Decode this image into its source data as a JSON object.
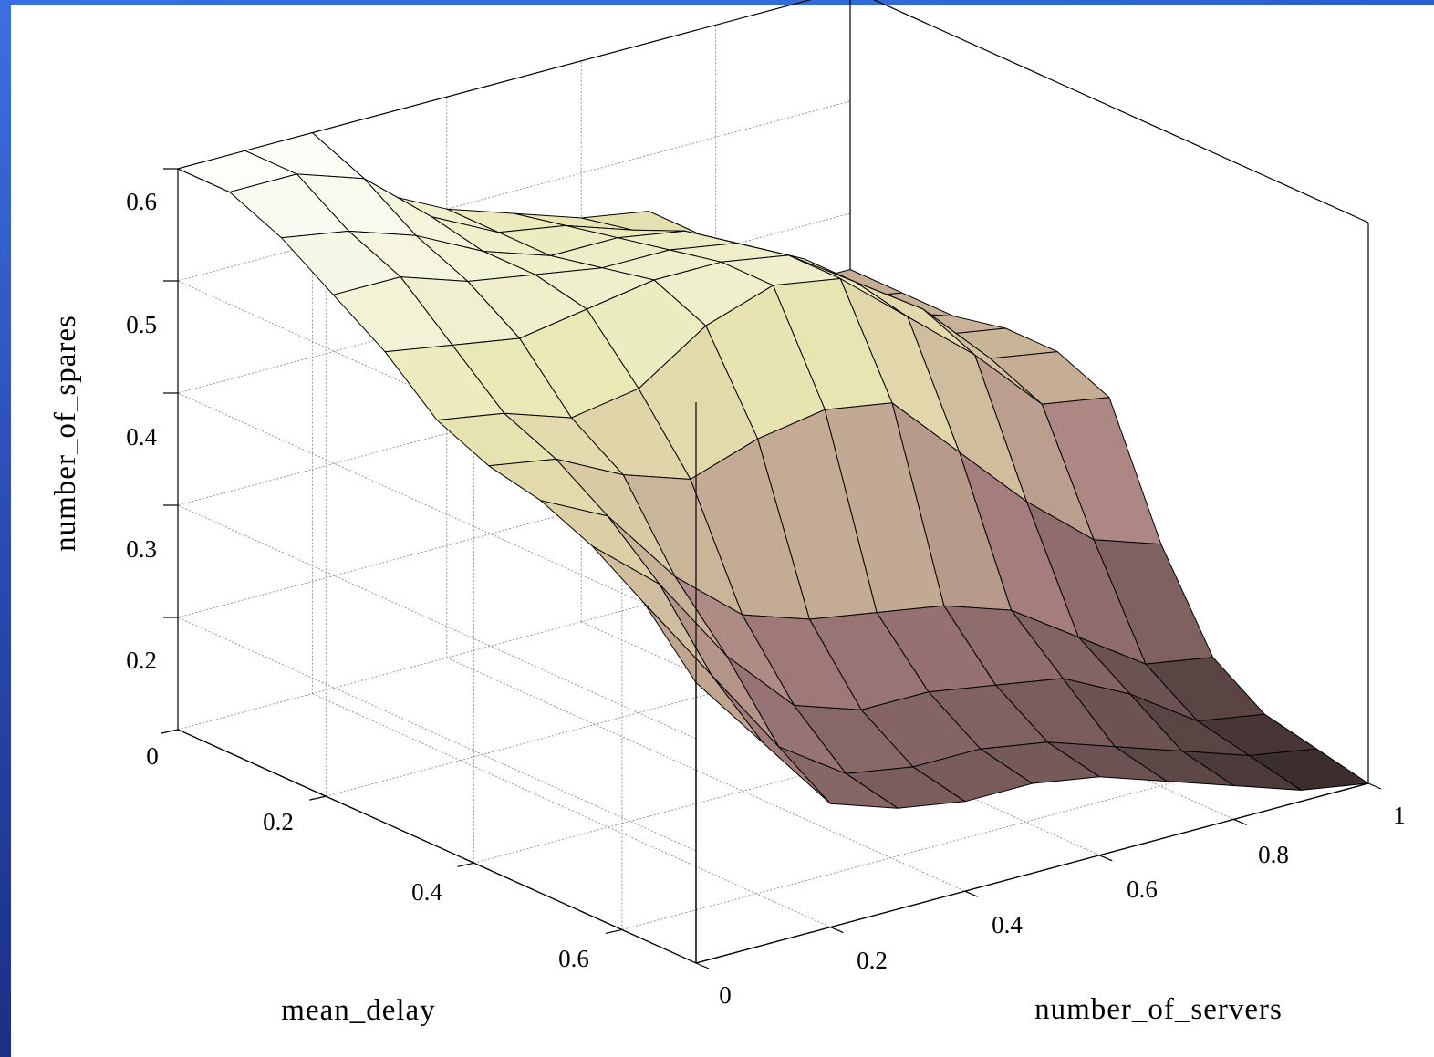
{
  "chart_data": {
    "type": "surface",
    "xlabel": "number_of_servers",
    "ylabel": "mean_delay",
    "zlabel": "number_of_spares",
    "xlim": [
      0,
      1
    ],
    "ylim": [
      0,
      0.7
    ],
    "zlim": [
      0.1,
      0.6
    ],
    "x_ticks": [
      "0",
      "0.2",
      "0.4",
      "0.6",
      "0.8",
      "1"
    ],
    "y_ticks": [
      "0",
      "0.2",
      "0.4",
      "0.6"
    ],
    "z_ticks": [
      "0.2",
      "0.3",
      "0.4",
      "0.5",
      "0.6"
    ],
    "grid": true,
    "colormap": "pink",
    "x": [
      0,
      0.1,
      0.2,
      0.3,
      0.4,
      0.5,
      0.6,
      0.7,
      0.8,
      0.9,
      1.0
    ],
    "y": [
      0,
      0.07,
      0.14,
      0.21,
      0.28,
      0.35,
      0.42,
      0.49,
      0.56,
      0.63,
      0.7
    ],
    "z": [
      [
        0.6,
        0.6,
        0.6,
        0.53,
        0.5,
        0.48,
        0.46,
        0.45,
        0.4,
        0.35,
        0.35
      ],
      [
        0.6,
        0.6,
        0.58,
        0.53,
        0.5,
        0.49,
        0.47,
        0.45,
        0.41,
        0.36,
        0.35
      ],
      [
        0.58,
        0.57,
        0.55,
        0.52,
        0.5,
        0.5,
        0.49,
        0.46,
        0.41,
        0.37,
        0.35
      ],
      [
        0.55,
        0.55,
        0.53,
        0.52,
        0.51,
        0.51,
        0.5,
        0.47,
        0.42,
        0.37,
        0.36
      ],
      [
        0.52,
        0.51,
        0.5,
        0.51,
        0.52,
        0.52,
        0.51,
        0.47,
        0.43,
        0.37,
        0.36
      ],
      [
        0.48,
        0.47,
        0.45,
        0.46,
        0.5,
        0.52,
        0.51,
        0.46,
        0.41,
        0.35,
        0.34
      ],
      [
        0.46,
        0.45,
        0.42,
        0.4,
        0.42,
        0.43,
        0.42,
        0.36,
        0.3,
        0.25,
        0.23
      ],
      [
        0.45,
        0.42,
        0.35,
        0.3,
        0.28,
        0.27,
        0.26,
        0.24,
        0.2,
        0.16,
        0.15
      ],
      [
        0.43,
        0.38,
        0.3,
        0.24,
        0.22,
        0.22,
        0.21,
        0.2,
        0.17,
        0.13,
        0.12
      ],
      [
        0.4,
        0.32,
        0.24,
        0.2,
        0.19,
        0.19,
        0.18,
        0.16,
        0.14,
        0.12,
        0.11
      ],
      [
        0.35,
        0.28,
        0.21,
        0.19,
        0.18,
        0.18,
        0.17,
        0.15,
        0.13,
        0.11,
        0.1
      ]
    ]
  }
}
